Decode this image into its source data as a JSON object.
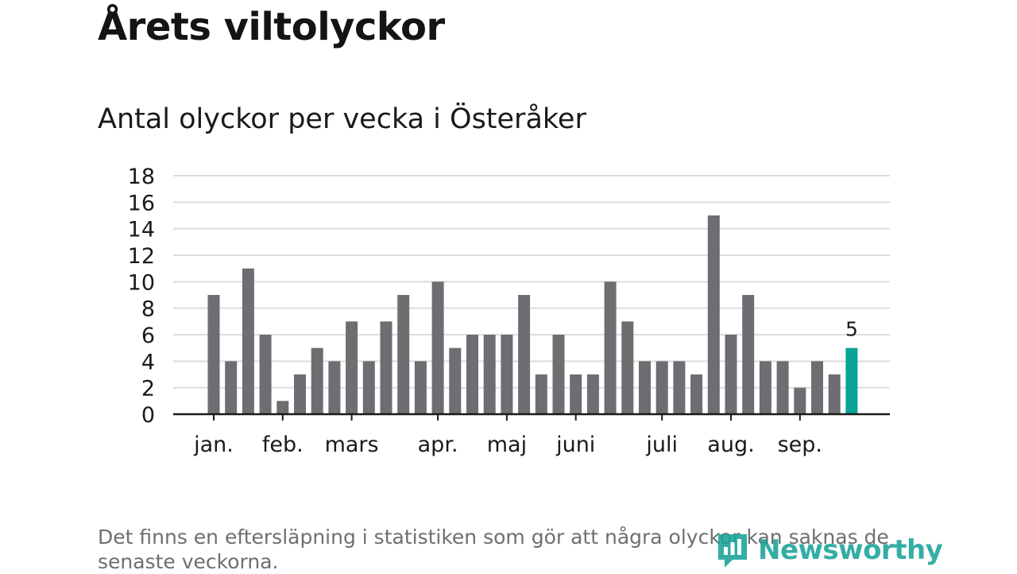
{
  "title": "Årets viltolyckor",
  "subtitle": "Antal olyckor per vecka i Österåker",
  "footnote": "Det finns en eftersläpning i statistiken som gör att några olyckor kan saknas de senaste veckorna.",
  "brand": {
    "name": "Newsworthy",
    "color": "#19a398"
  },
  "chart_data": {
    "type": "bar",
    "title": "Antal olyckor per vecka i Österåker",
    "xlabel": "",
    "ylabel": "",
    "ylim": [
      0,
      18
    ],
    "yticks": [
      0,
      2,
      4,
      6,
      8,
      10,
      12,
      14,
      16,
      18
    ],
    "grid": true,
    "values": [
      9,
      4,
      11,
      6,
      1,
      3,
      5,
      4,
      7,
      4,
      7,
      9,
      4,
      10,
      5,
      6,
      6,
      6,
      9,
      3,
      6,
      3,
      3,
      10,
      7,
      4,
      4,
      4,
      3,
      15,
      6,
      9,
      4,
      4,
      2,
      4,
      3,
      5
    ],
    "highlight_index": 37,
    "highlight_label": "5",
    "months": [
      {
        "label": "jan.",
        "week": 1
      },
      {
        "label": "feb.",
        "week": 5
      },
      {
        "label": "mars",
        "week": 9
      },
      {
        "label": "apr.",
        "week": 14
      },
      {
        "label": "maj",
        "week": 18
      },
      {
        "label": "juni",
        "week": 22
      },
      {
        "label": "juli",
        "week": 27
      },
      {
        "label": "aug.",
        "week": 31
      },
      {
        "label": "sep.",
        "week": 35
      }
    ],
    "bar_color": "#6e6d72",
    "highlight_color": "#0aa396",
    "grid_color": "#dcdcdc",
    "axis_color": "#1a1a1a"
  }
}
